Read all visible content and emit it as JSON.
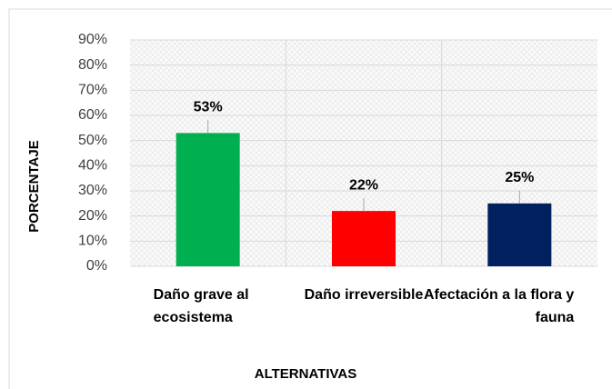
{
  "chart_data": {
    "type": "bar",
    "x_label": "ALTERNATIVAS",
    "y_label": "PORCENTAJE",
    "categories": [
      "Daño grave al ecosistema",
      "Daño irreversible",
      "Afectación a la flora y fauna"
    ],
    "values": [
      53,
      22,
      25
    ],
    "value_labels": [
      "53%",
      "22%",
      "25%"
    ],
    "colors": [
      "#00b050",
      "#ff0000",
      "#002060"
    ],
    "ylim": [
      0,
      90
    ],
    "yticks": [
      {
        "value": 0,
        "label": "0%"
      },
      {
        "value": 10,
        "label": "10%"
      },
      {
        "value": 20,
        "label": "20%"
      },
      {
        "value": 30,
        "label": "30%"
      },
      {
        "value": 40,
        "label": "40%"
      },
      {
        "value": 50,
        "label": "50%"
      },
      {
        "value": 60,
        "label": "60%"
      },
      {
        "value": 70,
        "label": "70%"
      },
      {
        "value": 80,
        "label": "80%"
      },
      {
        "value": 90,
        "label": "90%"
      }
    ],
    "grid": true
  }
}
